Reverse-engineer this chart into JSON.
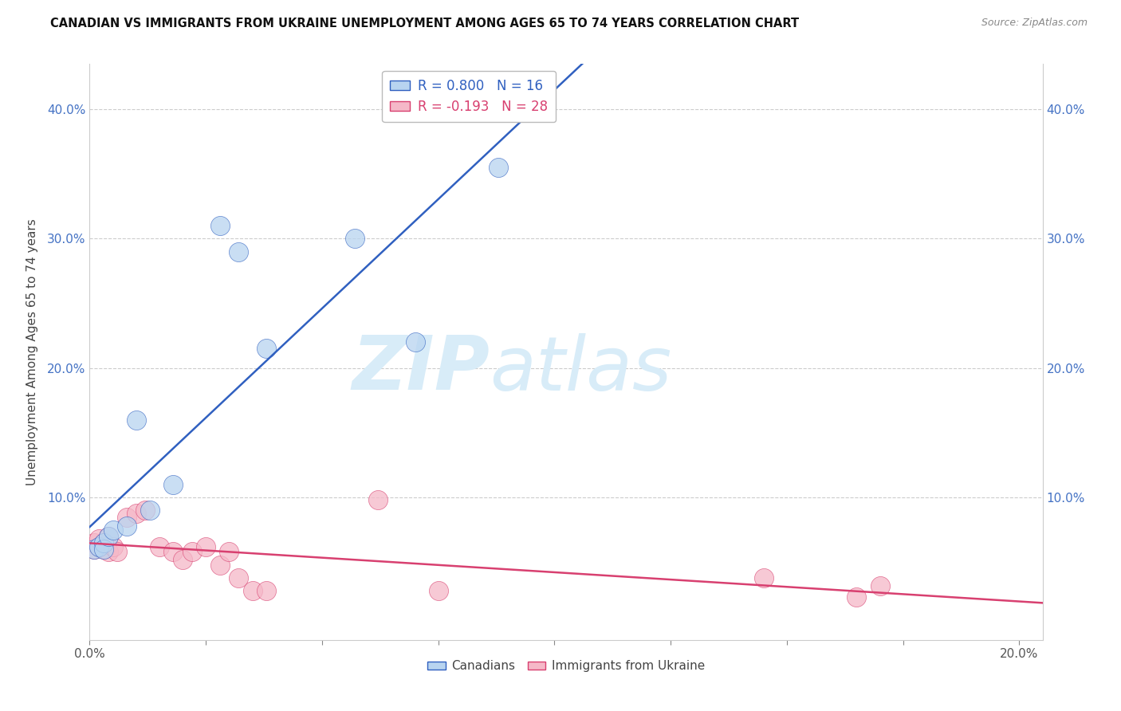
{
  "title": "CANADIAN VS IMMIGRANTS FROM UKRAINE UNEMPLOYMENT AMONG AGES 65 TO 74 YEARS CORRELATION CHART",
  "source": "Source: ZipAtlas.com",
  "ylabel": "Unemployment Among Ages 65 to 74 years",
  "xlim": [
    0.0,
    0.205
  ],
  "ylim": [
    -0.01,
    0.435
  ],
  "canadians_x": [
    0.001,
    0.002,
    0.003,
    0.003,
    0.004,
    0.005,
    0.008,
    0.01,
    0.013,
    0.018,
    0.028,
    0.032,
    0.038,
    0.057,
    0.07,
    0.088
  ],
  "canadians_y": [
    0.06,
    0.062,
    0.065,
    0.06,
    0.07,
    0.075,
    0.078,
    0.16,
    0.09,
    0.11,
    0.31,
    0.29,
    0.215,
    0.3,
    0.22,
    0.355
  ],
  "ukraine_x": [
    0.001,
    0.001,
    0.002,
    0.002,
    0.003,
    0.003,
    0.004,
    0.004,
    0.005,
    0.006,
    0.008,
    0.01,
    0.012,
    0.015,
    0.018,
    0.02,
    0.022,
    0.025,
    0.028,
    0.03,
    0.032,
    0.035,
    0.038,
    0.062,
    0.075,
    0.145,
    0.165,
    0.17
  ],
  "ukraine_y": [
    0.06,
    0.065,
    0.062,
    0.068,
    0.065,
    0.06,
    0.058,
    0.07,
    0.062,
    0.058,
    0.085,
    0.088,
    0.09,
    0.062,
    0.058,
    0.052,
    0.058,
    0.062,
    0.048,
    0.058,
    0.038,
    0.028,
    0.028,
    0.098,
    0.028,
    0.038,
    0.023,
    0.032
  ],
  "canadian_R": 0.8,
  "canadian_N": 16,
  "ukraine_R": -0.193,
  "ukraine_N": 28,
  "canadian_color": "#b8d4f0",
  "ukraine_color": "#f5b8c8",
  "canadian_line_color": "#3060c0",
  "ukraine_line_color": "#d84070",
  "watermark_zip": "ZIP",
  "watermark_atlas": "atlas",
  "watermark_color": "#d8ecf8",
  "background_color": "#ffffff",
  "grid_color": "#cccccc"
}
